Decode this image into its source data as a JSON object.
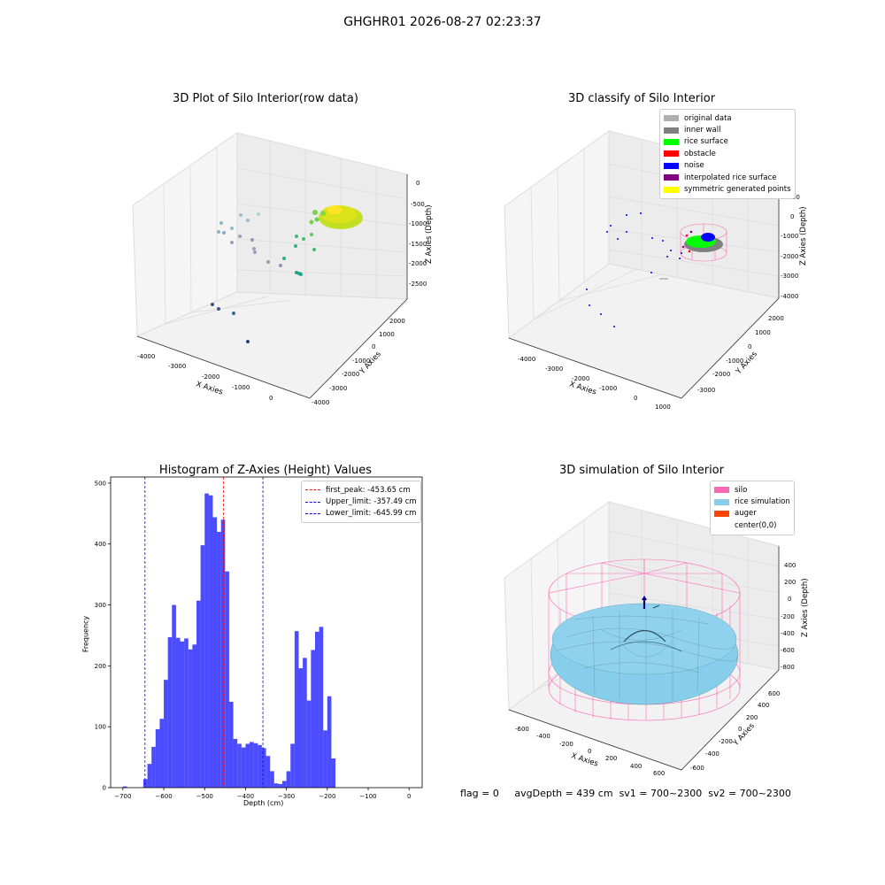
{
  "suptitle": "GHGHR01 2026-08-27 02:23:37",
  "panels": {
    "raw": {
      "title": "3D Plot of Silo Interior(row data)",
      "x_label": "X Axies",
      "y_label": "Y Axies",
      "z_label": "Z Axies (Depth)",
      "x_ticks": [
        "-4000",
        "-3000",
        "-2000",
        "-1000",
        "0"
      ],
      "y_ticks": [
        "2000",
        "1000",
        "0",
        "-1000",
        "-2000",
        "-3000",
        "-4000"
      ],
      "z_ticks": [
        "0",
        "-500",
        "-1000",
        "-1500",
        "-2000",
        "-2500"
      ]
    },
    "classify": {
      "title": "3D classify of Silo Interior",
      "x_label": "X Axies",
      "y_label": "Y Axies",
      "z_label": "Z Axies (Depth)",
      "x_ticks": [
        "-4000",
        "-3000",
        "-2000",
        "-1000",
        "0",
        "1000"
      ],
      "y_ticks": [
        "2000",
        "1000",
        "0",
        "-1000",
        "-2000",
        "-3000"
      ],
      "z_ticks": [
        "1000",
        "0",
        "-1000",
        "-2000",
        "-3000",
        "-4000"
      ],
      "legend": [
        {
          "label": "original data",
          "color": "#b0b0b0"
        },
        {
          "label": "inner wall",
          "color": "#808080"
        },
        {
          "label": "rice surface",
          "color": "#00ff00"
        },
        {
          "label": "obstacle",
          "color": "#ff0000"
        },
        {
          "label": "noise",
          "color": "#0000ff"
        },
        {
          "label": "interpolated rice surface",
          "color": "#800080"
        },
        {
          "label": "symmetric generated points",
          "color": "#ffff00"
        }
      ]
    },
    "sim": {
      "title": "3D simulation of Silo Interior",
      "x_label": "X Axies",
      "y_label": "Y Axies",
      "z_label": "Z Axies (Depth)",
      "x_ticks": [
        "-600",
        "-400",
        "-200",
        "0",
        "200",
        "400",
        "600"
      ],
      "y_ticks": [
        "600",
        "400",
        "200",
        "0",
        "-200",
        "-400",
        "-600"
      ],
      "z_ticks": [
        "400",
        "200",
        "0",
        "-200",
        "-400",
        "-600",
        "-800"
      ],
      "legend": [
        {
          "label": "silo",
          "color": "#ff69b4"
        },
        {
          "label": "rice simulation",
          "color": "#87ceeb"
        },
        {
          "label": "auger",
          "color": "#ff4500"
        },
        {
          "label": "center(0,0)",
          "color": ""
        }
      ]
    }
  },
  "chart_data": [
    {
      "type": "histogram",
      "title": "Histogram of Z-Axies (Height) Values",
      "xlabel": "Depth (cm)",
      "ylabel": "Frequency",
      "xlim": [
        -730,
        32
      ],
      "ylim": [
        0,
        510
      ],
      "x_ticks": [
        -700,
        -600,
        -500,
        -400,
        -300,
        -200,
        -100,
        0
      ],
      "y_ticks": [
        0,
        100,
        200,
        300,
        400,
        500
      ],
      "bar_color": "#0000ff",
      "bin_start": -700,
      "bin_width": 10,
      "values": [
        2,
        0,
        0,
        0,
        0,
        14,
        39,
        67,
        96,
        113,
        177,
        247,
        300,
        246,
        240,
        245,
        227,
        235,
        307,
        398,
        483,
        480,
        444,
        420,
        440,
        355,
        141,
        80,
        72,
        66,
        72,
        75,
        73,
        70,
        65,
        52,
        27,
        7,
        6,
        11,
        27,
        72,
        257,
        196,
        213,
        143,
        226,
        256,
        264,
        94,
        150,
        48
      ],
      "vlines": [
        {
          "label": "first_peak: -453.65 cm",
          "x": -453.65,
          "color": "#ff0000"
        },
        {
          "label": "Upper_limit: -357.49 cm",
          "x": -357.49,
          "color": "#0000ff"
        },
        {
          "label": "Lower_limit: -645.99 cm",
          "x": -645.99,
          "color": "#0000ff"
        }
      ]
    }
  ],
  "footer": {
    "flag": "flag = 0",
    "avg_depth": "avgDepth = 439 cm",
    "sv1": "sv1 = 700~2300",
    "sv2": "sv2 = 700~2300"
  }
}
